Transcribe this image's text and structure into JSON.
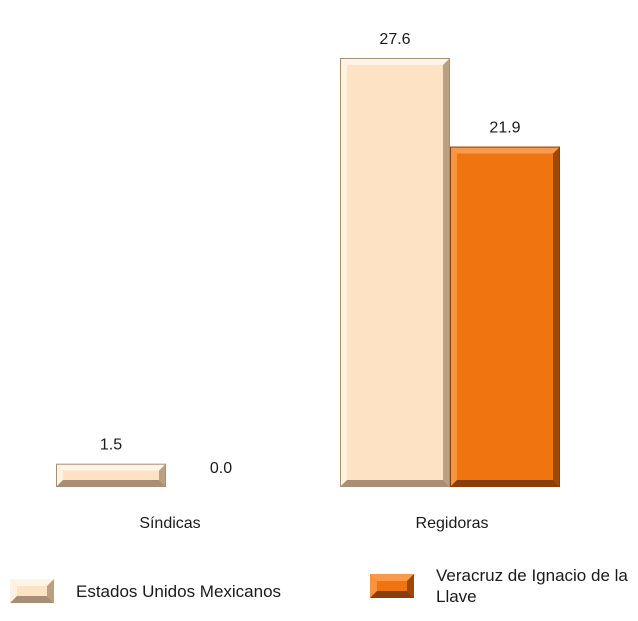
{
  "chart_data": {
    "type": "bar",
    "categories": [
      "Síndicas",
      "Regidoras"
    ],
    "series": [
      {
        "name": "Estados Unidos Mexicanos",
        "values": [
          1.5,
          27.6
        ],
        "labels": [
          "1.5",
          "27.6"
        ]
      },
      {
        "name": "Veracruz de Ignacio de la Llave",
        "values": [
          0.0,
          21.9
        ],
        "labels": [
          "0.0",
          "21.9"
        ]
      }
    ],
    "ylim": [
      0,
      28.5
    ],
    "grid": false,
    "legend": "bottom"
  },
  "colors": {
    "series_0_face": "#fde3c3",
    "series_0_edge_light": "#fff4e6",
    "series_0_edge_dark": "#a88e72",
    "series_1_face": "#f07511",
    "series_1_edge_light": "#f79a4c",
    "series_1_edge_dark": "#8a3f08"
  }
}
